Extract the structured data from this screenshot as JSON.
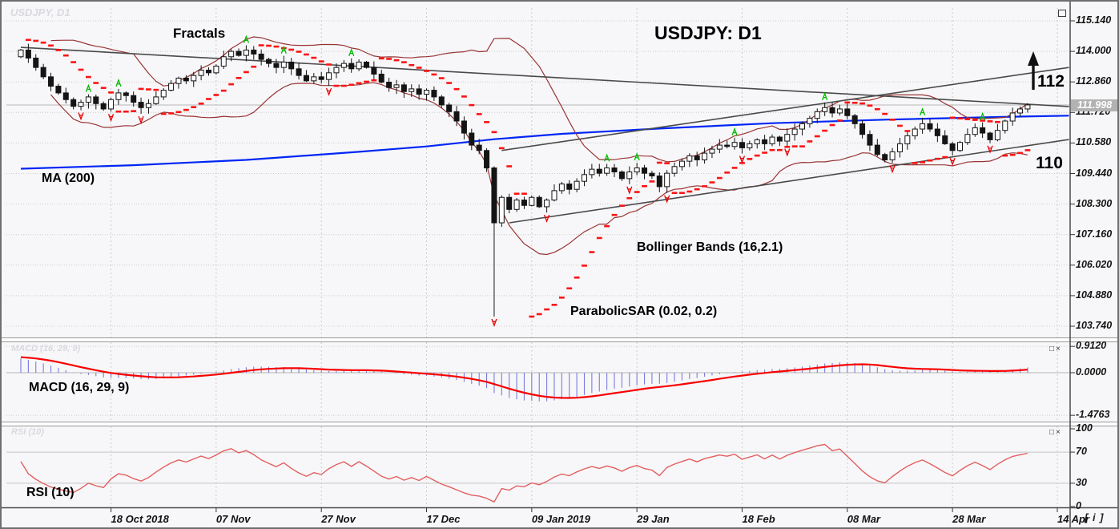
{
  "title": "USDJPY: D1",
  "watermarks": {
    "symbol": "USDJPY, D1",
    "macd": "MACD (16, 29, 9)",
    "rsi": "RSI (10)"
  },
  "window": {
    "maximize_icon": "",
    "panel_minimize_icon": "□",
    "panel_close_icon": "×",
    "corner_badge": "[ i ]"
  },
  "annotations": {
    "fractals_label": "Fractals",
    "ma_label": "MA (200)",
    "bb_label": "Bollinger Bands (16,2.1)",
    "sar_label": "ParabolicSAR (0.02, 0.2)",
    "macd_label": "MACD (16, 29, 9)",
    "rsi_label": "RSI (10)",
    "level_upper": "112",
    "level_lower": "110"
  },
  "price_axis": {
    "current_price": "111.998",
    "ticks": [
      "115.140",
      "114.000",
      "112.860",
      "111.720",
      "110.580",
      "109.440",
      "108.300",
      "107.160",
      "106.020",
      "104.880",
      "103.740"
    ]
  },
  "macd_axis": {
    "ticks": [
      "0.9120",
      "0.0000",
      "-1.4763"
    ]
  },
  "rsi_axis": {
    "ticks": [
      "100",
      "70",
      "30",
      "0"
    ]
  },
  "time_axis": {
    "labels": [
      "18 Oct 2018",
      "07 Nov",
      "27 Nov",
      "17 Dec",
      "09 Jan 2019",
      "29 Jan",
      "18 Feb",
      "08 Mar",
      "28 Mar",
      "14 Apr"
    ]
  },
  "chart_data": {
    "type": "candlestick",
    "symbol": "USDJPY",
    "timeframe": "D1",
    "title": "USDJPY: D1",
    "ylim": [
      103.74,
      115.14
    ],
    "price_ticks": [
      115.14,
      114.0,
      112.86,
      111.72,
      110.58,
      109.44,
      108.3,
      107.16,
      106.02,
      104.88,
      103.74
    ],
    "current_price": 111.998,
    "closes": [
      114.05,
      113.75,
      113.4,
      113.05,
      112.7,
      112.45,
      112.2,
      111.95,
      112.1,
      112.3,
      112.05,
      111.85,
      112.2,
      112.45,
      112.35,
      112.1,
      111.9,
      112.05,
      112.3,
      112.55,
      112.8,
      113.0,
      112.9,
      113.1,
      113.3,
      113.2,
      113.45,
      113.8,
      114.0,
      113.85,
      114.05,
      113.9,
      113.7,
      113.55,
      113.4,
      113.6,
      113.35,
      113.1,
      112.9,
      113.05,
      112.95,
      113.2,
      113.4,
      113.55,
      113.35,
      113.6,
      113.4,
      113.15,
      112.85,
      112.65,
      112.75,
      112.5,
      112.6,
      112.4,
      112.55,
      112.3,
      112.0,
      111.75,
      111.4,
      110.95,
      110.5,
      110.3,
      109.65,
      107.6,
      108.55,
      108.1,
      108.45,
      108.25,
      108.55,
      108.2,
      108.45,
      108.8,
      109.05,
      108.85,
      109.15,
      109.4,
      109.6,
      109.45,
      109.65,
      109.5,
      109.25,
      109.5,
      109.65,
      109.45,
      109.35,
      108.95,
      109.45,
      109.7,
      109.9,
      110.1,
      109.95,
      110.2,
      110.35,
      110.5,
      110.45,
      110.6,
      110.4,
      110.55,
      110.7,
      110.55,
      110.8,
      110.65,
      110.9,
      111.1,
      111.3,
      111.5,
      111.75,
      111.9,
      111.7,
      111.85,
      111.6,
      111.3,
      110.9,
      110.5,
      110.15,
      109.95,
      110.25,
      110.55,
      110.85,
      111.1,
      111.3,
      111.1,
      110.85,
      110.55,
      110.3,
      110.6,
      110.9,
      111.15,
      110.95,
      110.7,
      111.05,
      111.4,
      111.7,
      111.85,
      112.0
    ],
    "crash_candle": {
      "index": 63,
      "low": 104.1
    },
    "indicators": {
      "ma": {
        "period": 200
      },
      "bollinger": {
        "period": 16,
        "deviation": 2.1
      },
      "sar": {
        "step": 0.02,
        "max": 0.2
      },
      "macd": {
        "fast": 16,
        "slow": 29,
        "signal": 9
      },
      "rsi": {
        "period": 10
      }
    },
    "ma200_anchors": [
      [
        0,
        109.62
      ],
      [
        15,
        109.75
      ],
      [
        30,
        109.95
      ],
      [
        45,
        110.25
      ],
      [
        54,
        110.45
      ],
      [
        63,
        110.72
      ],
      [
        72,
        110.92
      ],
      [
        85,
        111.12
      ],
      [
        100,
        111.32
      ],
      [
        115,
        111.45
      ],
      [
        130,
        111.55
      ],
      [
        139.5,
        111.6
      ]
    ],
    "trendlines": [
      {
        "name": "descending-resistance",
        "points": [
          [
            0,
            114.15
          ],
          [
            139.5,
            111.94
          ]
        ]
      },
      {
        "name": "ascending-channel-upper",
        "points": [
          [
            64,
            110.3
          ],
          [
            139.5,
            113.4
          ]
        ]
      },
      {
        "name": "ascending-channel-lower",
        "points": [
          [
            65,
            107.6
          ],
          [
            139.5,
            110.71
          ]
        ]
      }
    ],
    "up_arrow_annotation": {
      "x": 1288,
      "y_top": 62,
      "y_bottom": 110
    },
    "macd_range": {
      "max": 0.912,
      "min": -1.4763
    },
    "rsi_levels": [
      70,
      30
    ],
    "time_tick_indices": [
      12,
      26,
      40,
      54,
      68,
      82,
      96,
      110,
      124
    ],
    "extra_tick_x": 1318
  },
  "colors": {
    "background": "#f7f7f9",
    "grid": "#cbcbcb",
    "candle_up": "#ffffff",
    "candle_down": "#141414",
    "candle_stroke": "#141414",
    "bollinger": "#983434",
    "ma200": "#0026f5",
    "sar": "#fb1414",
    "macd_histogram": "#7b7bdb",
    "macd_signal": "#f80000",
    "rsi_line": "#e35f5f",
    "trendline": "#4a4a4a",
    "price_line": "#b7b7b7",
    "price_tag_bg": "#b2b2b2",
    "fractal_up": "#00bc00",
    "fractal_down": "#e80000"
  }
}
